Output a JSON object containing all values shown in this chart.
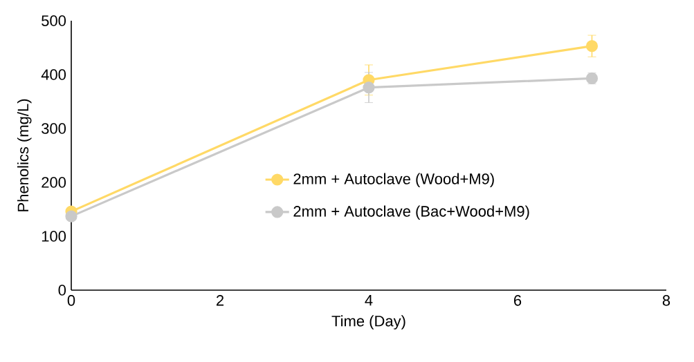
{
  "chart_data": {
    "type": "line",
    "xlabel": "Time (Day)",
    "ylabel": "Phenolics (mg/L)",
    "x": [
      0,
      4,
      7
    ],
    "series": [
      {
        "name": "2mm + Autoclave (Wood+M9)",
        "color": "#ffd966",
        "values": [
          146,
          390,
          453
        ],
        "errors": [
          null,
          28,
          20
        ]
      },
      {
        "name": "2mm + Autoclave (Bac+Wood+M9)",
        "color": "#c9c9c9",
        "values": [
          137,
          376,
          393
        ],
        "errors": [
          null,
          28,
          10
        ]
      }
    ],
    "xlim": [
      0,
      8
    ],
    "xticks": [
      0,
      2,
      4,
      6,
      8
    ],
    "ylim": [
      0,
      500
    ],
    "yticks": [
      0,
      100,
      200,
      300,
      400,
      500
    ],
    "grid": false,
    "legend": "center",
    "marker": "circle",
    "line_style": "solid"
  }
}
